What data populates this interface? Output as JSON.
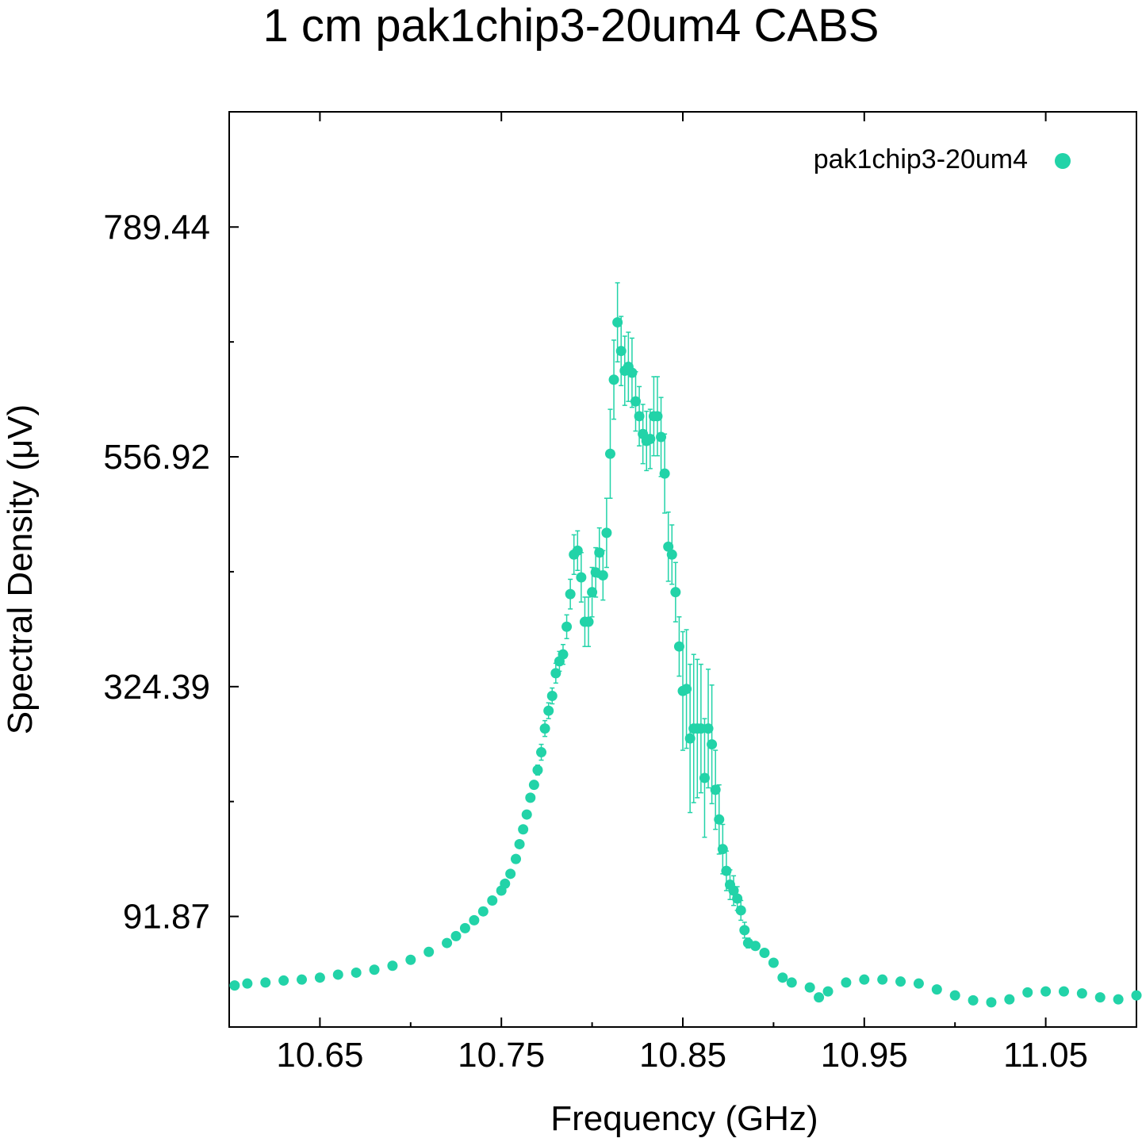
{
  "chart_data": {
    "type": "scatter",
    "title": "1 cm pak1chip3-20um4 CABS",
    "xlabel": "Frequency (GHz)",
    "ylabel": "Spectral Density (μV)",
    "xlim": [
      10.6,
      11.1
    ],
    "ylim": [
      -20,
      906
    ],
    "x_ticks": [
      10.65,
      10.75,
      10.85,
      10.95,
      11.05
    ],
    "x_tick_labels": [
      "10.65",
      "10.75",
      "10.85",
      "10.95",
      "11.05"
    ],
    "y_ticks": [
      91.87,
      324.39,
      556.92,
      789.44
    ],
    "y_tick_labels": [
      "91.87",
      "324.39",
      "556.92",
      "789.44"
    ],
    "grid": false,
    "legend_position": "top-right",
    "color": "#22d3a8",
    "series": [
      {
        "name": "pak1chip3-20um4",
        "marker": "circle",
        "error_bars": true,
        "points": [
          [
            10.603,
            22,
            0
          ],
          [
            10.61,
            24,
            0
          ],
          [
            10.62,
            25,
            0
          ],
          [
            10.63,
            27,
            0
          ],
          [
            10.64,
            28,
            0
          ],
          [
            10.65,
            30,
            0
          ],
          [
            10.66,
            33,
            0
          ],
          [
            10.67,
            35,
            0
          ],
          [
            10.68,
            38,
            0
          ],
          [
            10.69,
            42,
            0
          ],
          [
            10.7,
            48,
            0
          ],
          [
            10.71,
            56,
            0
          ],
          [
            10.72,
            65,
            0
          ],
          [
            10.725,
            72,
            0
          ],
          [
            10.73,
            80,
            0
          ],
          [
            10.735,
            88,
            0
          ],
          [
            10.74,
            97,
            0
          ],
          [
            10.745,
            108,
            0
          ],
          [
            10.75,
            118,
            0
          ],
          [
            10.752,
            125,
            0
          ],
          [
            10.755,
            135,
            0
          ],
          [
            10.758,
            150,
            0
          ],
          [
            10.76,
            165,
            0
          ],
          [
            10.762,
            180,
            0
          ],
          [
            10.764,
            195,
            0
          ],
          [
            10.766,
            212,
            0
          ],
          [
            10.768,
            225,
            0
          ],
          [
            10.77,
            240,
            5
          ],
          [
            10.772,
            258,
            8
          ],
          [
            10.774,
            282,
            8
          ],
          [
            10.776,
            300,
            8
          ],
          [
            10.778,
            315,
            8
          ],
          [
            10.78,
            338,
            10
          ],
          [
            10.782,
            350,
            10
          ],
          [
            10.784,
            357,
            10
          ],
          [
            10.786,
            385,
            12
          ],
          [
            10.788,
            418,
            15
          ],
          [
            10.79,
            458,
            20
          ],
          [
            10.792,
            462,
            20
          ],
          [
            10.794,
            435,
            25
          ],
          [
            10.796,
            390,
            25
          ],
          [
            10.798,
            390,
            25
          ],
          [
            10.8,
            420,
            25
          ],
          [
            10.802,
            440,
            25
          ],
          [
            10.804,
            460,
            25
          ],
          [
            10.806,
            437,
            25
          ],
          [
            10.808,
            480,
            35
          ],
          [
            10.81,
            560,
            45
          ],
          [
            10.812,
            635,
            40
          ],
          [
            10.814,
            693,
            40
          ],
          [
            10.816,
            664,
            35
          ],
          [
            10.818,
            644,
            35
          ],
          [
            10.82,
            648,
            35
          ],
          [
            10.822,
            642,
            35
          ],
          [
            10.824,
            613,
            30
          ],
          [
            10.826,
            598,
            30
          ],
          [
            10.828,
            580,
            30
          ],
          [
            10.83,
            573,
            30
          ],
          [
            10.832,
            575,
            30
          ],
          [
            10.834,
            598,
            40
          ],
          [
            10.836,
            598,
            40
          ],
          [
            10.838,
            577,
            40
          ],
          [
            10.84,
            540,
            40
          ],
          [
            10.842,
            466,
            35
          ],
          [
            10.844,
            458,
            30
          ],
          [
            10.846,
            420,
            30
          ],
          [
            10.848,
            365,
            30
          ],
          [
            10.85,
            320,
            60
          ],
          [
            10.852,
            322,
            60
          ],
          [
            10.854,
            272,
            75
          ],
          [
            10.856,
            282,
            75
          ],
          [
            10.858,
            282,
            70
          ],
          [
            10.86,
            282,
            65
          ],
          [
            10.862,
            232,
            60
          ],
          [
            10.864,
            282,
            60
          ],
          [
            10.866,
            266,
            60
          ],
          [
            10.868,
            220,
            40
          ],
          [
            10.87,
            190,
            35
          ],
          [
            10.872,
            160,
            25
          ],
          [
            10.874,
            138,
            20
          ],
          [
            10.876,
            124,
            15
          ],
          [
            10.878,
            118,
            15
          ],
          [
            10.88,
            110,
            12
          ],
          [
            10.882,
            98,
            10
          ],
          [
            10.884,
            78,
            8
          ],
          [
            10.886,
            65,
            5
          ],
          [
            10.89,
            62,
            0
          ],
          [
            10.895,
            55,
            0
          ],
          [
            10.9,
            45,
            0
          ],
          [
            10.905,
            30,
            0
          ],
          [
            10.91,
            25,
            0
          ],
          [
            10.92,
            20,
            0
          ],
          [
            10.925,
            10,
            0
          ],
          [
            10.93,
            16,
            0
          ],
          [
            10.94,
            25,
            0
          ],
          [
            10.95,
            28,
            0
          ],
          [
            10.96,
            28,
            0
          ],
          [
            10.97,
            26,
            0
          ],
          [
            10.98,
            24,
            0
          ],
          [
            10.99,
            18,
            0
          ],
          [
            11.0,
            12,
            0
          ],
          [
            11.01,
            7,
            0
          ],
          [
            11.02,
            5,
            0
          ],
          [
            11.03,
            8,
            0
          ],
          [
            11.04,
            15,
            0
          ],
          [
            11.05,
            16,
            0
          ],
          [
            11.06,
            16,
            0
          ],
          [
            11.07,
            14,
            0
          ],
          [
            11.08,
            10,
            0
          ],
          [
            11.09,
            8,
            0
          ],
          [
            11.1,
            12,
            0
          ]
        ]
      }
    ]
  }
}
